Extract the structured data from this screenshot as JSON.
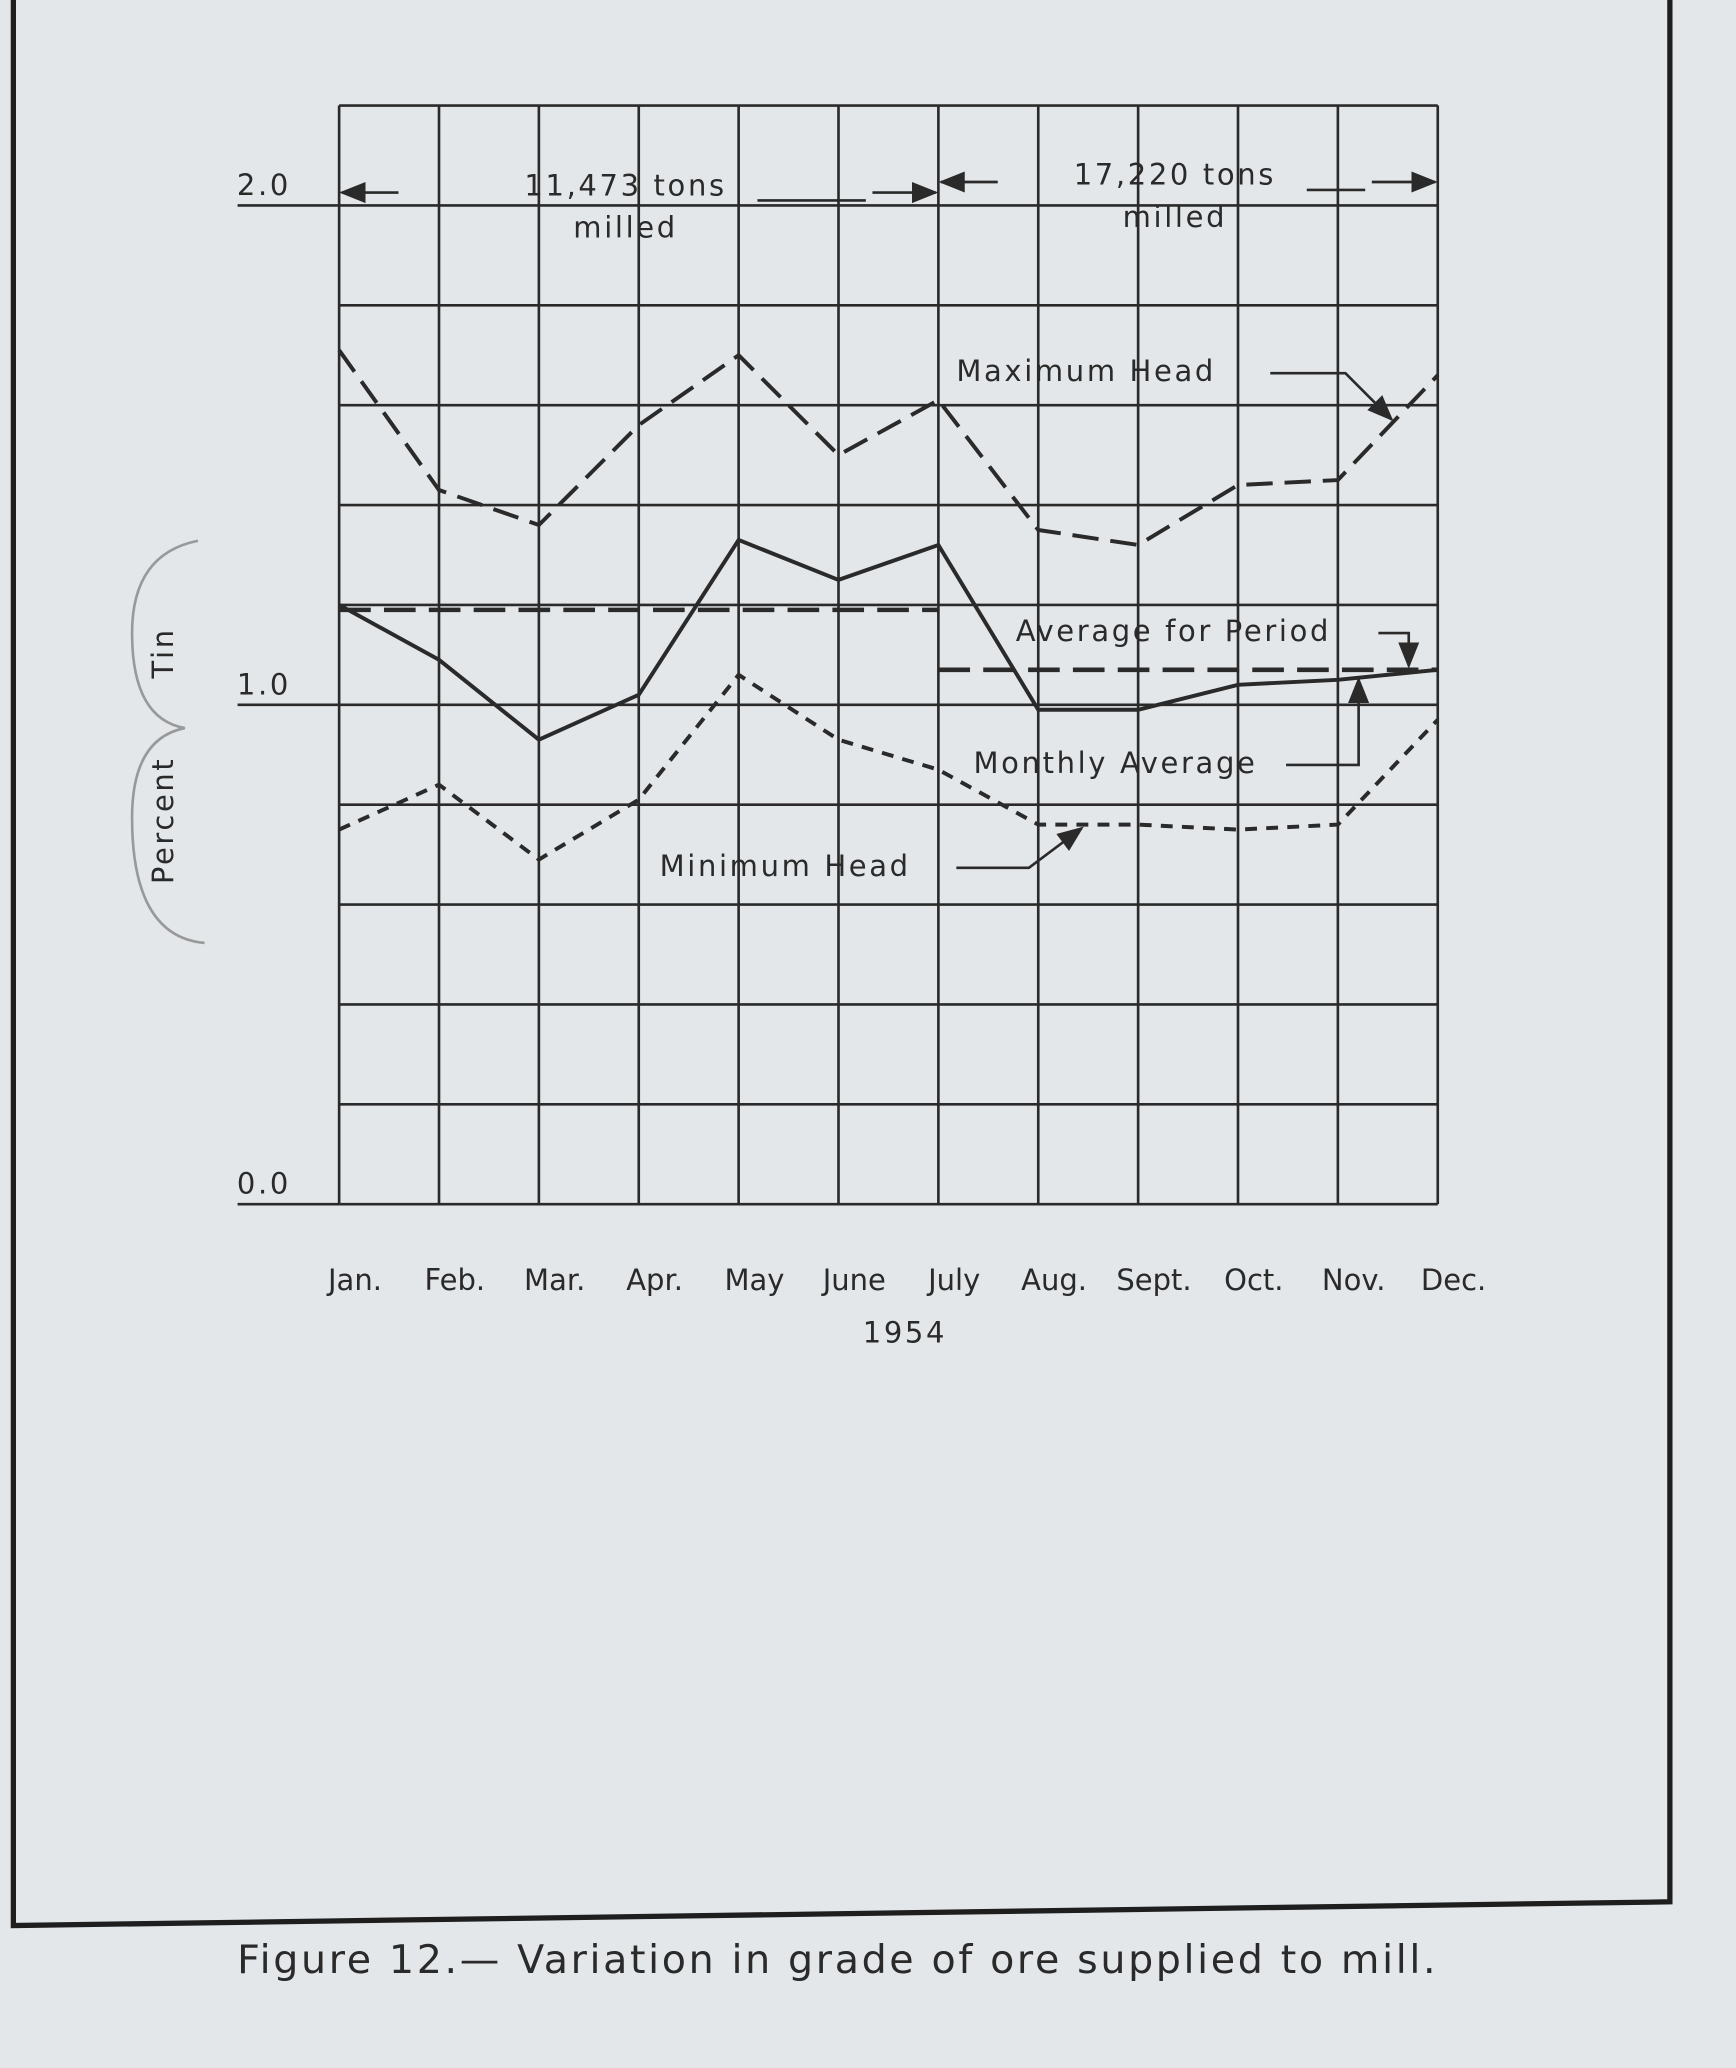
{
  "chart_data": {
    "type": "line",
    "title": "Figure 12.— Variation in grade of ore supplied to mill.",
    "xlabel": "1954",
    "ylabel": [
      "Percent",
      "Tin"
    ],
    "categories": [
      "Jan.",
      "Feb.",
      "Mar.",
      "Apr.",
      "May",
      "June",
      "July",
      "Aug.",
      "Sept.",
      "Oct.",
      "Nov.",
      "Dec."
    ],
    "series": [
      {
        "name": "Maximum Head",
        "color": "#2a2a2a",
        "style": "long-dash",
        "values": [
          1.71,
          1.43,
          1.36,
          1.56,
          1.7,
          1.5,
          1.61,
          1.35,
          1.32,
          1.44,
          1.45,
          1.66
        ]
      },
      {
        "name": "Monthly Average",
        "color": "#2a2a2a",
        "style": "solid",
        "values": [
          1.2,
          1.09,
          0.93,
          1.02,
          1.33,
          1.25,
          1.32,
          0.99,
          0.99,
          1.04,
          1.05,
          1.07
        ]
      },
      {
        "name": "Minimum Head",
        "color": "#2a2a2a",
        "style": "short-dash",
        "values": [
          0.75,
          0.84,
          0.69,
          0.81,
          1.06,
          0.93,
          0.87,
          0.76,
          0.76,
          0.75,
          0.76,
          0.97
        ]
      }
    ],
    "period_average_name": "Average for Period",
    "periods": [
      {
        "text": [
          "11,473 tons",
          "milled"
        ],
        "start": 0,
        "end": 6,
        "average": 1.19
      },
      {
        "text": [
          "17,220 tons",
          "milled"
        ],
        "start": 6,
        "end": 11,
        "average": 1.07
      }
    ],
    "ylim": [
      0,
      2.2
    ],
    "yticks": [
      {
        "value": 0,
        "label": "0.0"
      },
      {
        "value": 1,
        "label": "1.0"
      },
      {
        "value": 2,
        "label": "2.0"
      }
    ],
    "ygrid": [
      0,
      0.2,
      0.4,
      0.6,
      0.8,
      1.0,
      1.2,
      1.4,
      1.6,
      1.8,
      2.0,
      2.2
    ],
    "grid": true
  }
}
